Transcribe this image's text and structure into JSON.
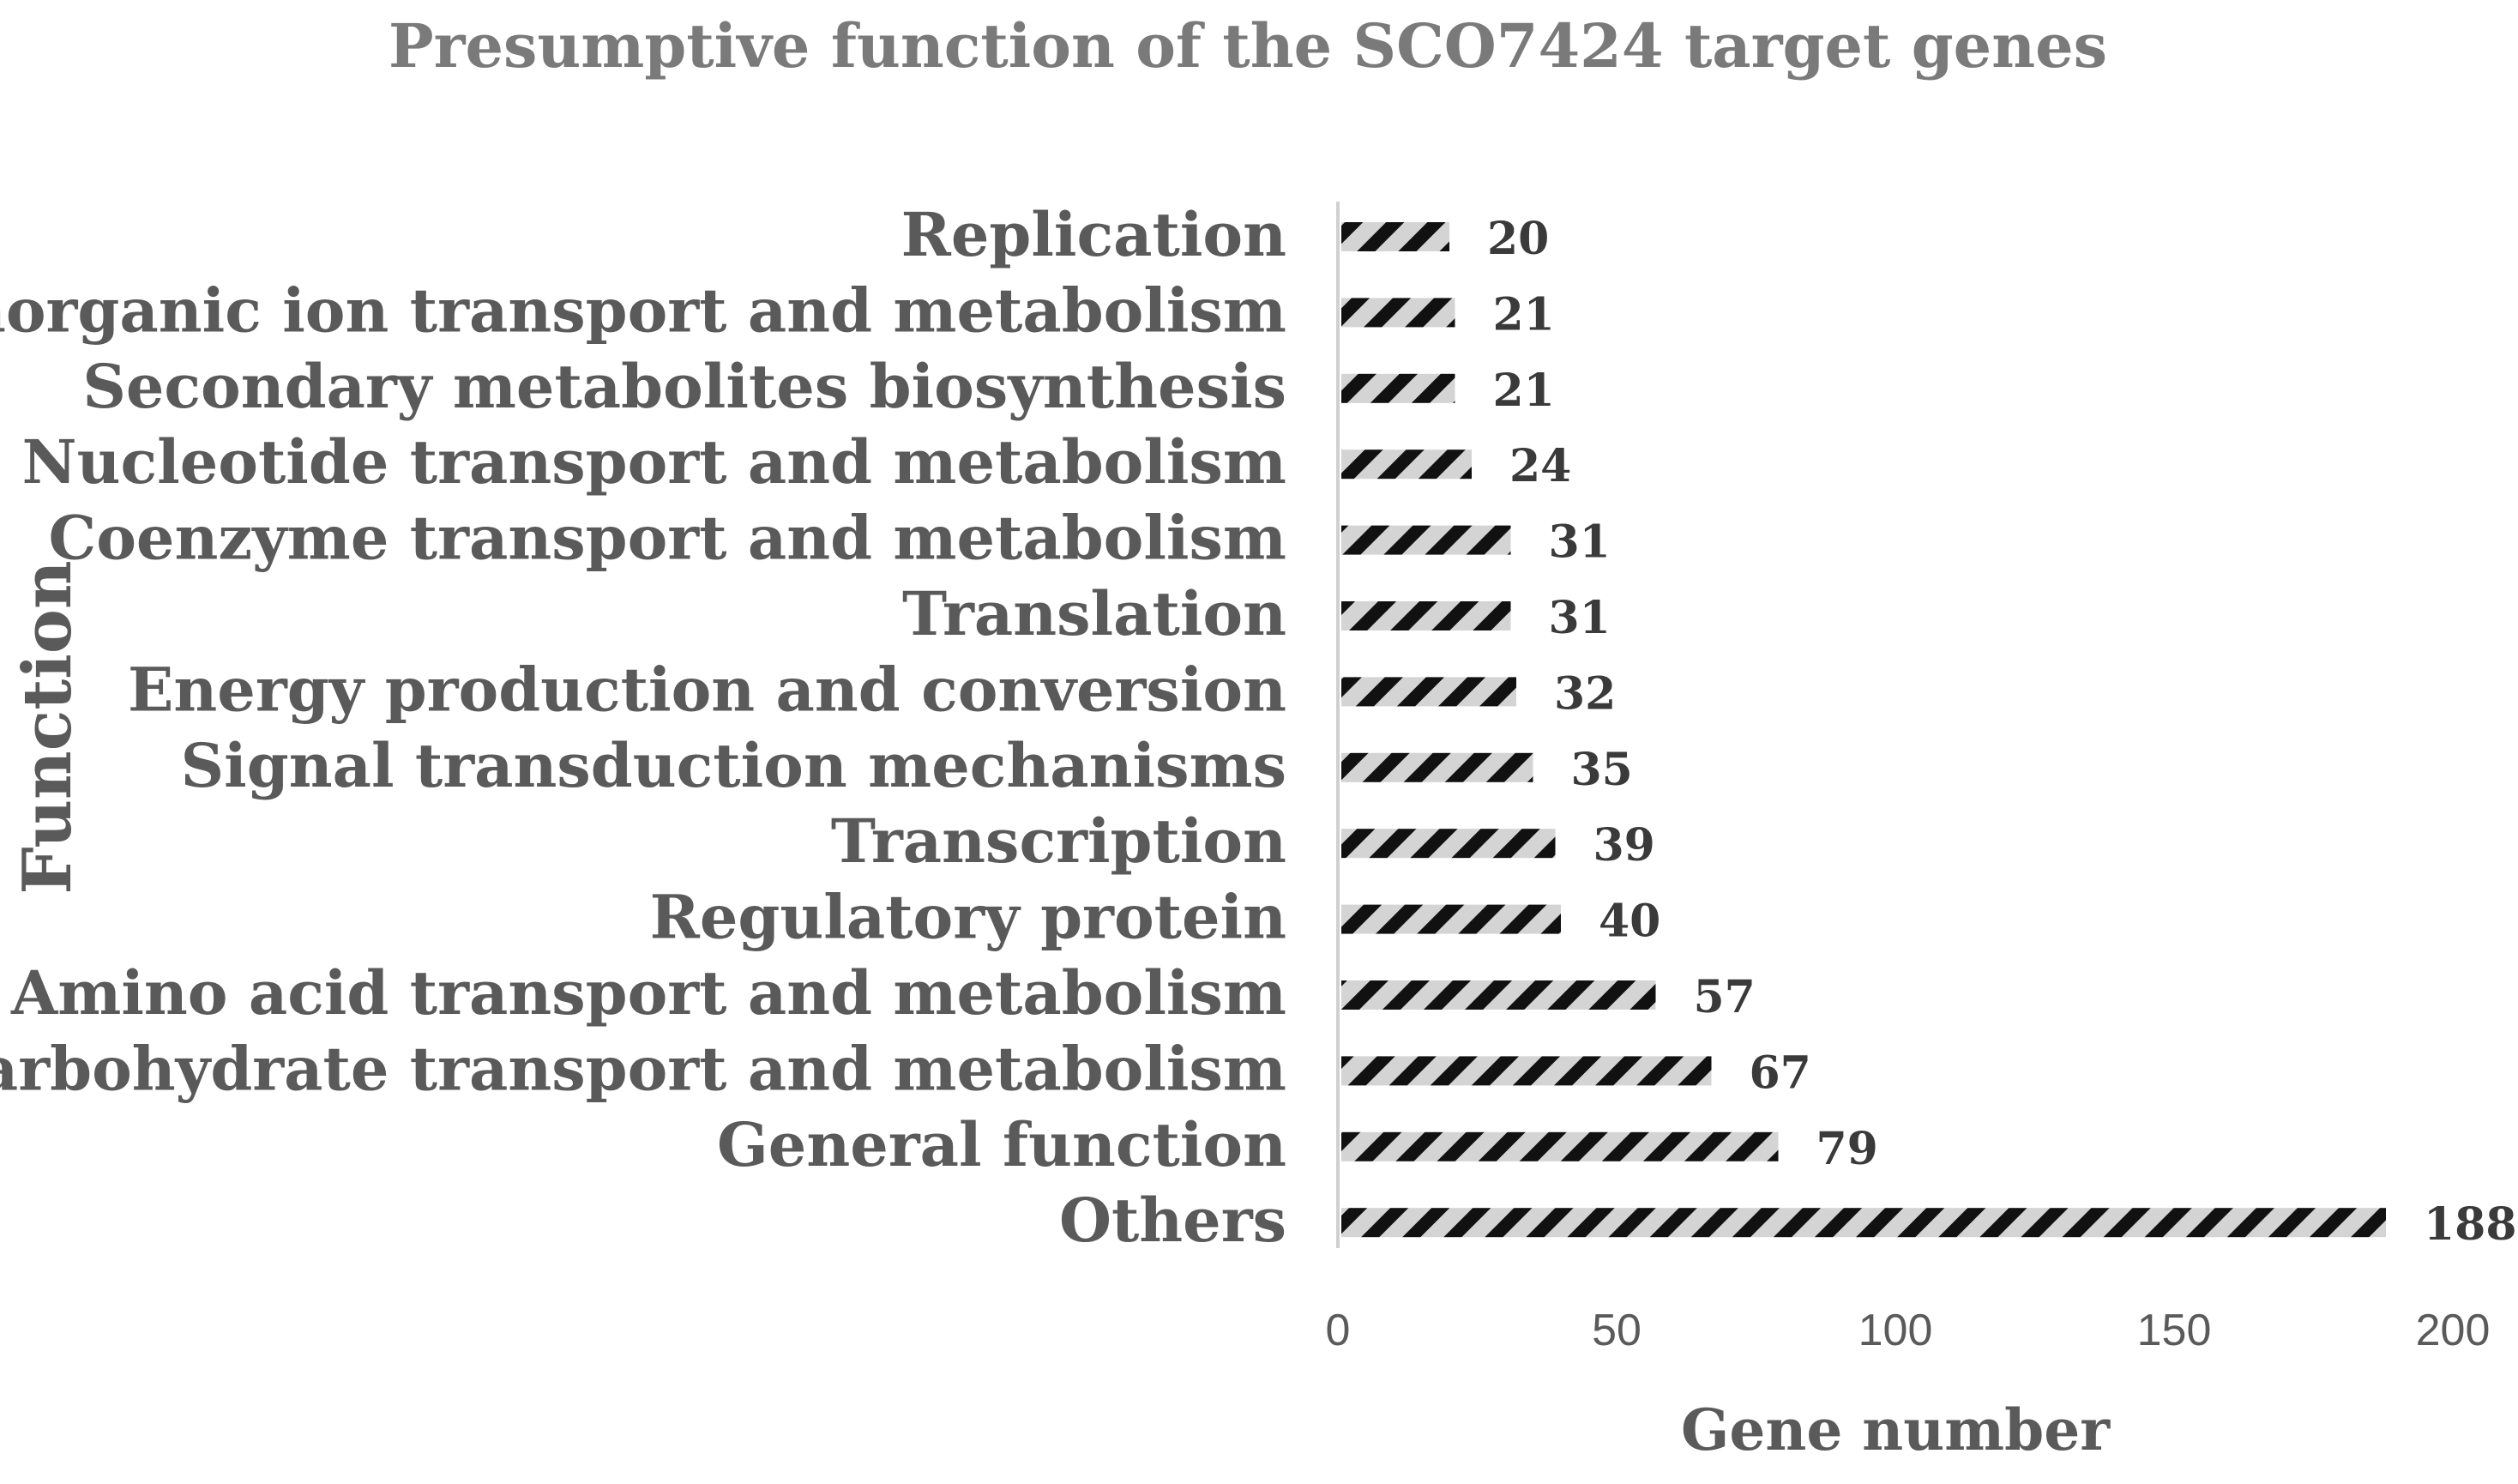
{
  "chart_data": {
    "type": "bar",
    "orientation": "horizontal",
    "title": "Presumptive function of the SCO7424 target genes",
    "xlabel": "Gene number",
    "ylabel": "Function",
    "categories": [
      "Replication",
      "Inorganic ion transport and metabolism",
      "Secondary metabolites biosynthesis",
      "Nucleotide transport and metabolism",
      "Coenzyme transport and metabolism",
      "Translation",
      "Energy production and conversion",
      "Signal transduction mechanisms",
      "Transcription",
      "Regulatory protein",
      "Amino acid transport and metabolism",
      "Carbohydrate transport and metabolism",
      "General function",
      "Others"
    ],
    "values": [
      20,
      21,
      21,
      24,
      31,
      31,
      32,
      35,
      39,
      40,
      57,
      67,
      79,
      188
    ],
    "xticks": [
      "0",
      "50",
      "100",
      "150",
      "200"
    ],
    "xlim": [
      0,
      200
    ],
    "grid": false,
    "legend": "none",
    "bar_pattern": "diagonal-hatch",
    "colors": {
      "hatch_dark": "#111111",
      "hatch_light": "#d4d4d4",
      "axis": "#d0d0d0"
    }
  }
}
